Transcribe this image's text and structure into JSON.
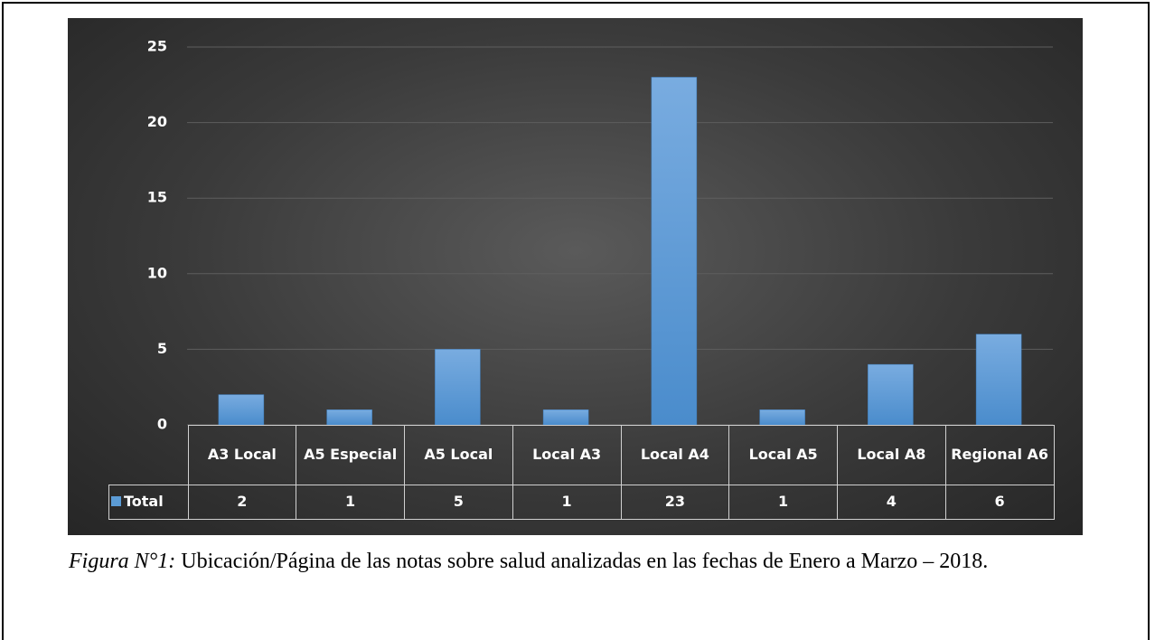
{
  "chart_data": {
    "type": "bar",
    "categories": [
      "A3 Local",
      "A5 Especial",
      "A5 Local",
      "Local A3",
      "Local A4",
      "Local A5",
      "Local A8",
      "Regional A6"
    ],
    "series": [
      {
        "name": "Total",
        "color": "#5b9bd5",
        "values": [
          2,
          1,
          5,
          1,
          23,
          1,
          4,
          6
        ]
      }
    ],
    "ylim": [
      0,
      25
    ],
    "yticks": [
      0,
      5,
      10,
      15,
      20,
      25
    ],
    "grid": true
  },
  "caption": {
    "label": "Figura N°1:",
    "text": "Ubicación/Página de las notas sobre salud analizadas en las fechas de Enero a Marzo – 2018."
  }
}
